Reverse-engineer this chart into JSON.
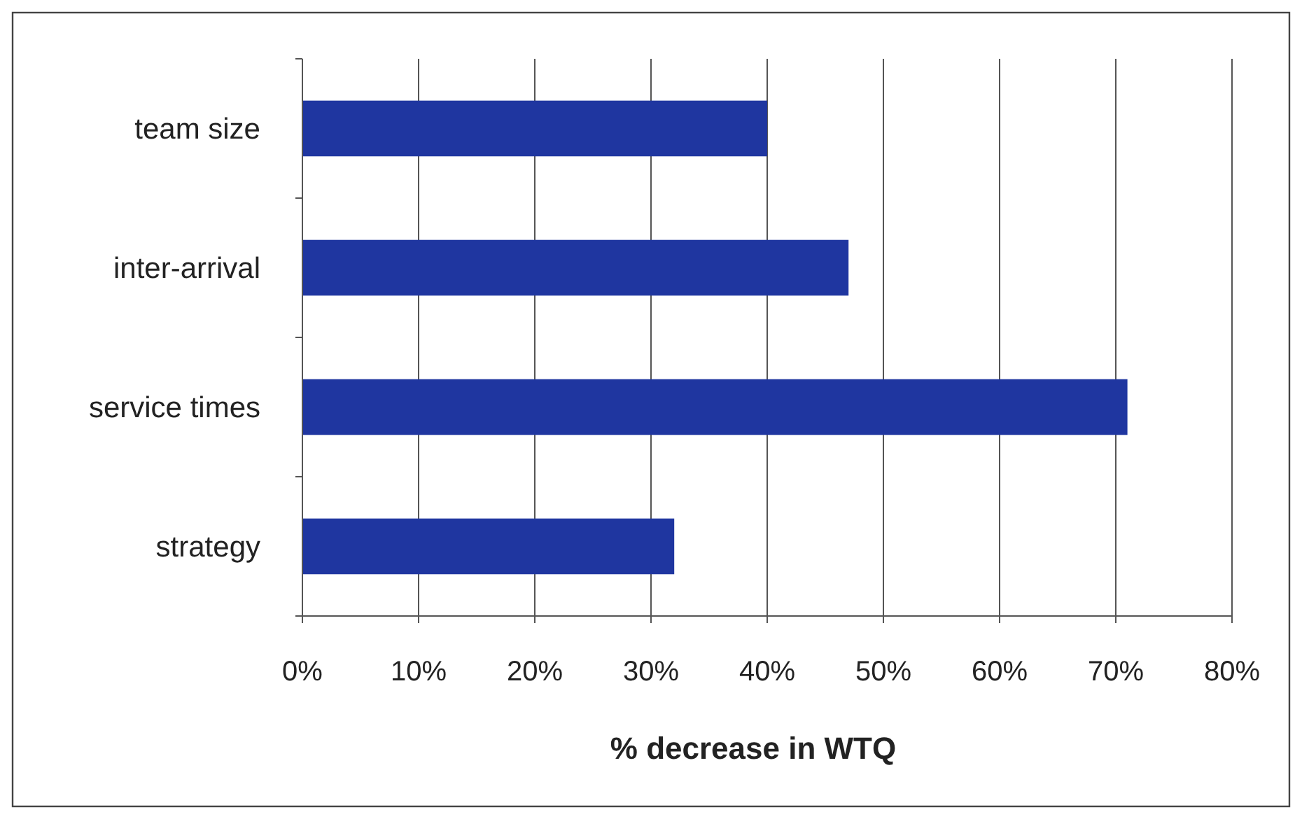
{
  "chart_data": {
    "type": "bar",
    "orientation": "horizontal",
    "xlabel": "% decrease in WTQ",
    "categories": [
      "team size",
      "inter-arrival",
      "service times",
      "strategy"
    ],
    "values": [
      40,
      47,
      71,
      32
    ],
    "color": "#1f36a0",
    "xlim": [
      0,
      80
    ],
    "xticks": [
      {
        "value": 0,
        "label": "0%"
      },
      {
        "value": 10,
        "label": "10%"
      },
      {
        "value": 20,
        "label": "20%"
      },
      {
        "value": 30,
        "label": "30%"
      },
      {
        "value": 40,
        "label": "40%"
      },
      {
        "value": 50,
        "label": "50%"
      },
      {
        "value": 60,
        "label": "60%"
      },
      {
        "value": 70,
        "label": "70%"
      },
      {
        "value": 80,
        "label": "80%"
      }
    ],
    "grid": "x"
  }
}
